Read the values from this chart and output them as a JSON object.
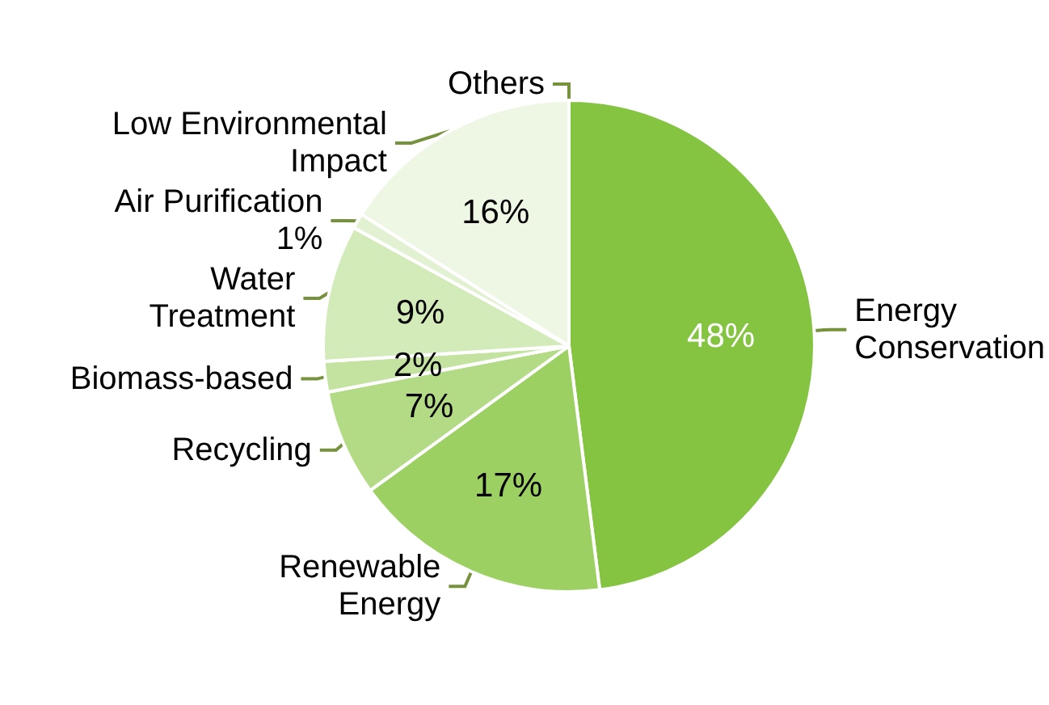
{
  "chart_data": {
    "type": "pie",
    "categories": [
      "Energy Conservation",
      "Renewable Energy",
      "Recycling",
      "Biomass-based",
      "Water Treatment",
      "Air Purification",
      "Low Environmental Impact",
      "Others"
    ],
    "values": [
      48,
      17,
      7,
      2,
      9,
      1,
      16,
      0
    ],
    "colors": [
      "#84c441",
      "#9dd062",
      "#b3db86",
      "#c4e3a0",
      "#d3eab9",
      "#e2f1d1",
      "#eef6e4",
      "#f5faef"
    ],
    "value_labels": [
      "48%",
      "17%",
      "7%",
      "2%",
      "9%",
      "1%",
      "16%",
      null
    ]
  }
}
